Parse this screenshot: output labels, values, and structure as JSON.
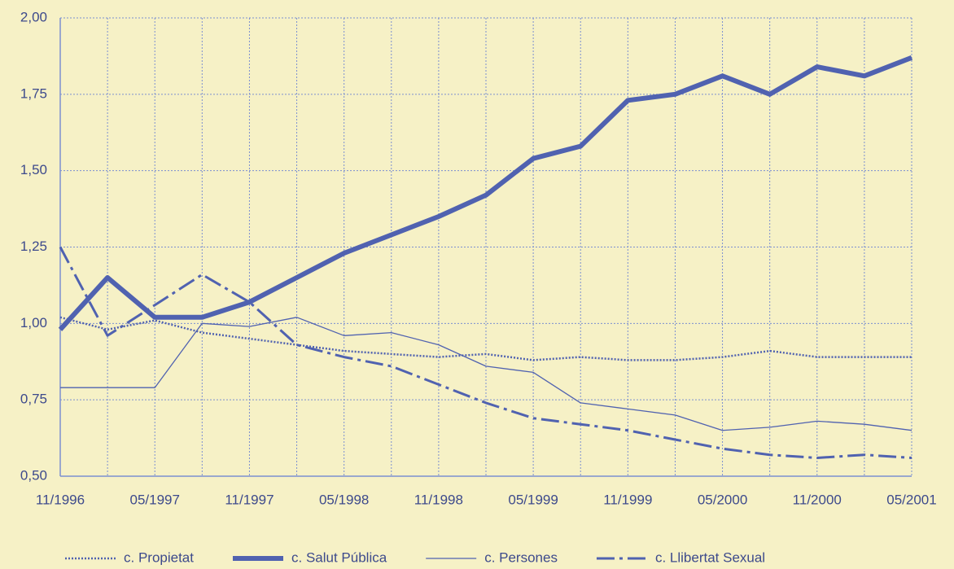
{
  "chart_data": {
    "type": "line",
    "categories": [
      "11/1996",
      null,
      "05/1997",
      null,
      "11/1997",
      null,
      "05/1998",
      null,
      "11/1998",
      null,
      "05/1999",
      null,
      "11/1999",
      null,
      "05/2000",
      null,
      "11/2000",
      null,
      "05/2001"
    ],
    "series": [
      {
        "name": "c. Propietat",
        "color": "#5062b0",
        "line_style": "dotted",
        "line_width": 2.5,
        "values": [
          1.02,
          0.98,
          1.01,
          0.97,
          0.95,
          0.93,
          0.91,
          0.9,
          0.89,
          0.9,
          0.88,
          0.89,
          0.88,
          0.88,
          0.89,
          0.91,
          0.89,
          0.89,
          0.89
        ]
      },
      {
        "name": "c. Salut Pública",
        "color": "#5062b0",
        "line_style": "solid",
        "line_width": 6,
        "values": [
          0.98,
          1.15,
          1.02,
          1.02,
          1.07,
          1.15,
          1.23,
          1.29,
          1.35,
          1.42,
          1.54,
          1.58,
          1.73,
          1.75,
          1.81,
          1.75,
          1.84,
          1.81,
          1.87
        ]
      },
      {
        "name": "c. Persones",
        "color": "#5062b0",
        "line_style": "solid",
        "line_width": 1.3,
        "values": [
          0.79,
          0.79,
          0.79,
          1.0,
          0.99,
          1.02,
          0.96,
          0.97,
          0.93,
          0.86,
          0.84,
          0.74,
          0.72,
          0.7,
          0.65,
          0.66,
          0.68,
          0.67,
          0.65
        ]
      },
      {
        "name": "c. Llibertat Sexual",
        "color": "#5062b0",
        "line_style": "dash-dot",
        "line_width": 3,
        "values": [
          1.25,
          0.96,
          1.06,
          1.16,
          1.07,
          0.93,
          0.89,
          0.86,
          0.8,
          0.74,
          0.69,
          0.67,
          0.65,
          0.62,
          0.59,
          0.57,
          0.56,
          0.57,
          0.56
        ]
      }
    ],
    "ylim": [
      0.5,
      2.0
    ],
    "yticks": [
      {
        "value": 0.5,
        "label": "0,50"
      },
      {
        "value": 0.75,
        "label": "0,75"
      },
      {
        "value": 1.0,
        "label": "1,00"
      },
      {
        "value": 1.25,
        "label": "1,25"
      },
      {
        "value": 1.5,
        "label": "1,50"
      },
      {
        "value": 1.75,
        "label": "1,75"
      },
      {
        "value": 2.0,
        "label": "2,00"
      }
    ],
    "grid": true,
    "legend": "bottom"
  }
}
